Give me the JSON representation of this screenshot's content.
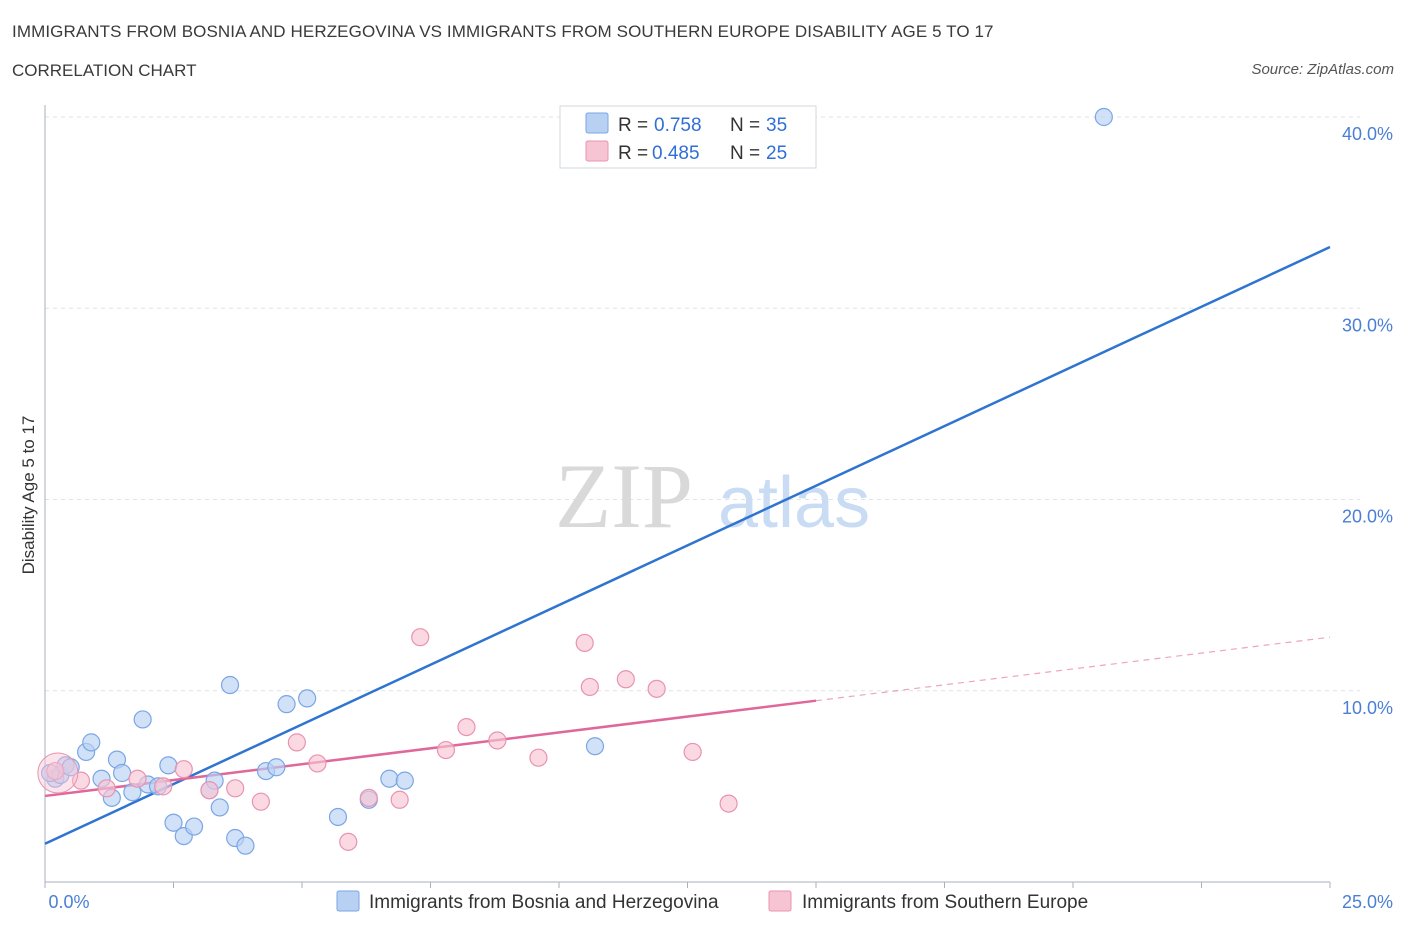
{
  "header": {
    "title": "IMMIGRANTS FROM BOSNIA AND HERZEGOVINA VS IMMIGRANTS FROM SOUTHERN EUROPE DISABILITY AGE 5 TO 17",
    "subtitle": "CORRELATION CHART",
    "source": "Source: ZipAtlas.com"
  },
  "watermark": {
    "zip": "ZIP",
    "atlas": "atlas"
  },
  "legend": {
    "r_label": "R =",
    "n_label": "N =",
    "entries": [
      {
        "r": "0.758",
        "n": "35"
      },
      {
        "r": "0.485",
        "n": "25"
      }
    ]
  },
  "colors": {
    "blue_fill": "#b8d1f3",
    "blue_stroke": "#7aa6e6",
    "blue_line": "#2f74d0",
    "pink_fill": "#f7c4d4",
    "pink_stroke": "#e993b1",
    "pink_line": "#e0679a",
    "grid": "#dde3ea",
    "axis": "#aab2bd"
  },
  "chart_data": {
    "type": "scatter",
    "title": "IMMIGRANTS FROM BOSNIA AND HERZEGOVINA VS IMMIGRANTS FROM SOUTHERN EUROPE DISABILITY AGE 5 TO 17",
    "xlabel": "",
    "ylabel": "Disability Age 5 to 17",
    "xlim": [
      0,
      25
    ],
    "ylim": [
      0,
      40
    ],
    "x_tick_labels": [
      "0.0%",
      "25.0%"
    ],
    "y_ticks": [
      10,
      20,
      30,
      40
    ],
    "y_tick_labels": [
      "10.0%",
      "20.0%",
      "30.0%",
      "40.0%"
    ],
    "legend_position": "top-center",
    "series": [
      {
        "name": "Immigrants from Bosnia and Herzegovina",
        "color": "blue",
        "trend": {
          "x": [
            0,
            25
          ],
          "y": [
            2.0,
            33.2
          ],
          "solid_to": 25
        },
        "points": [
          [
            0.2,
            5.4
          ],
          [
            0.3,
            5.6
          ],
          [
            0.4,
            6.1
          ],
          [
            0.5,
            6.0
          ],
          [
            0.8,
            6.8
          ],
          [
            0.9,
            7.3
          ],
          [
            1.1,
            5.4
          ],
          [
            1.3,
            4.4
          ],
          [
            1.4,
            6.4
          ],
          [
            1.5,
            5.7
          ],
          [
            1.7,
            4.7
          ],
          [
            1.9,
            8.5
          ],
          [
            2.0,
            5.1
          ],
          [
            2.2,
            5.0
          ],
          [
            2.4,
            6.1
          ],
          [
            2.5,
            3.1
          ],
          [
            2.7,
            2.4
          ],
          [
            2.9,
            2.9
          ],
          [
            3.2,
            4.8
          ],
          [
            3.3,
            5.3
          ],
          [
            3.4,
            3.9
          ],
          [
            3.6,
            10.3
          ],
          [
            3.7,
            2.3
          ],
          [
            3.9,
            1.9
          ],
          [
            4.3,
            5.8
          ],
          [
            4.5,
            6.0
          ],
          [
            4.7,
            9.3
          ],
          [
            5.1,
            9.6
          ],
          [
            5.7,
            3.4
          ],
          [
            6.3,
            4.3
          ],
          [
            6.7,
            5.4
          ],
          [
            7.0,
            5.3
          ],
          [
            10.7,
            7.1
          ],
          [
            20.6,
            40.0
          ],
          [
            0.1,
            5.7
          ]
        ]
      },
      {
        "name": "Immigrants from Southern Europe",
        "color": "pink",
        "trend": {
          "x": [
            0,
            25
          ],
          "y": [
            4.5,
            12.8
          ],
          "solid_to": 15
        },
        "points": [
          [
            0.2,
            5.8
          ],
          [
            0.7,
            5.3
          ],
          [
            1.2,
            4.9
          ],
          [
            1.8,
            5.4
          ],
          [
            2.3,
            5.0
          ],
          [
            2.7,
            5.9
          ],
          [
            3.2,
            4.8
          ],
          [
            3.7,
            4.9
          ],
          [
            4.2,
            4.2
          ],
          [
            4.9,
            7.3
          ],
          [
            5.3,
            6.2
          ],
          [
            5.9,
            2.1
          ],
          [
            6.3,
            4.4
          ],
          [
            6.9,
            4.3
          ],
          [
            7.3,
            12.8
          ],
          [
            7.8,
            6.9
          ],
          [
            8.2,
            8.1
          ],
          [
            8.8,
            7.4
          ],
          [
            9.6,
            6.5
          ],
          [
            10.5,
            12.5
          ],
          [
            10.6,
            10.2
          ],
          [
            11.3,
            10.6
          ],
          [
            11.9,
            10.1
          ],
          [
            12.6,
            6.8
          ],
          [
            13.3,
            4.1
          ]
        ]
      }
    ]
  }
}
